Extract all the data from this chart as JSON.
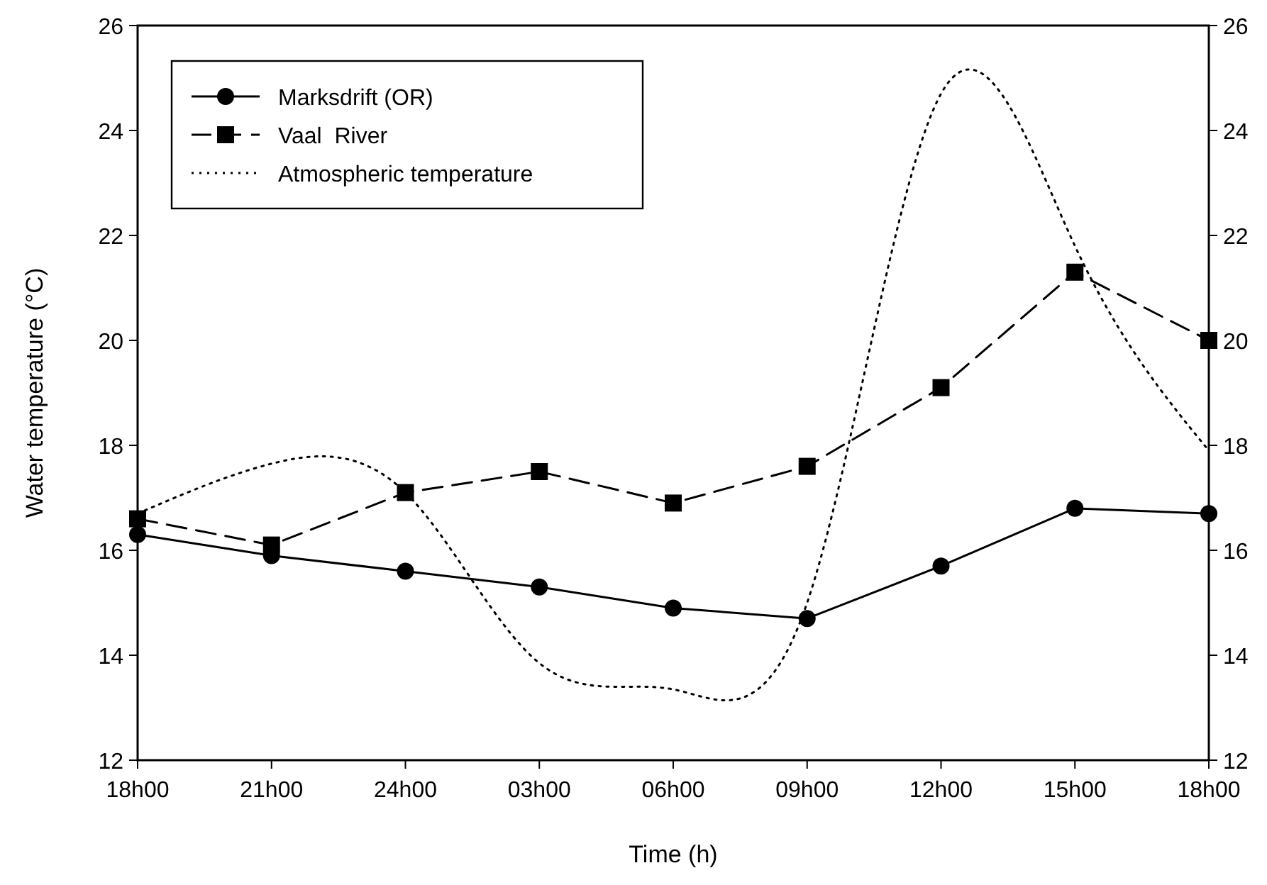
{
  "chart_data": {
    "type": "line",
    "xlabel": "Time (h)",
    "ylabel": "Water temperature (°C)",
    "categories": [
      "18h00",
      "21h00",
      "24h00",
      "03h00",
      "06h00",
      "09h00",
      "12h00",
      "15h00",
      "18h00"
    ],
    "ylim": [
      12,
      26
    ],
    "yticks": [
      12,
      14,
      16,
      18,
      20,
      22,
      24,
      26
    ],
    "y2lim": [
      12,
      26
    ],
    "y2ticks": [
      12,
      14,
      16,
      18,
      20,
      22,
      24,
      26
    ],
    "legend": "top left",
    "grid": false,
    "series": [
      {
        "name": "Marksdrift (OR)",
        "color": "#000000",
        "marker": "circle",
        "line_style": "solid",
        "values": [
          16.3,
          15.9,
          15.6,
          15.3,
          14.9,
          14.7,
          15.7,
          16.8,
          16.7
        ]
      },
      {
        "name": "Vaal  River",
        "color": "#000000",
        "marker": "square",
        "line_style": "dashed",
        "values": [
          16.6,
          16.1,
          17.1,
          17.5,
          16.9,
          17.6,
          19.1,
          21.3,
          20.0
        ]
      },
      {
        "name": "Atmospheric temperature",
        "color": "#000000",
        "marker": "none",
        "line_style": "dotted",
        "values": [
          16.7,
          17.65,
          17.1,
          13.85,
          13.35,
          15.0,
          24.7,
          21.8,
          17.9
        ]
      }
    ]
  }
}
